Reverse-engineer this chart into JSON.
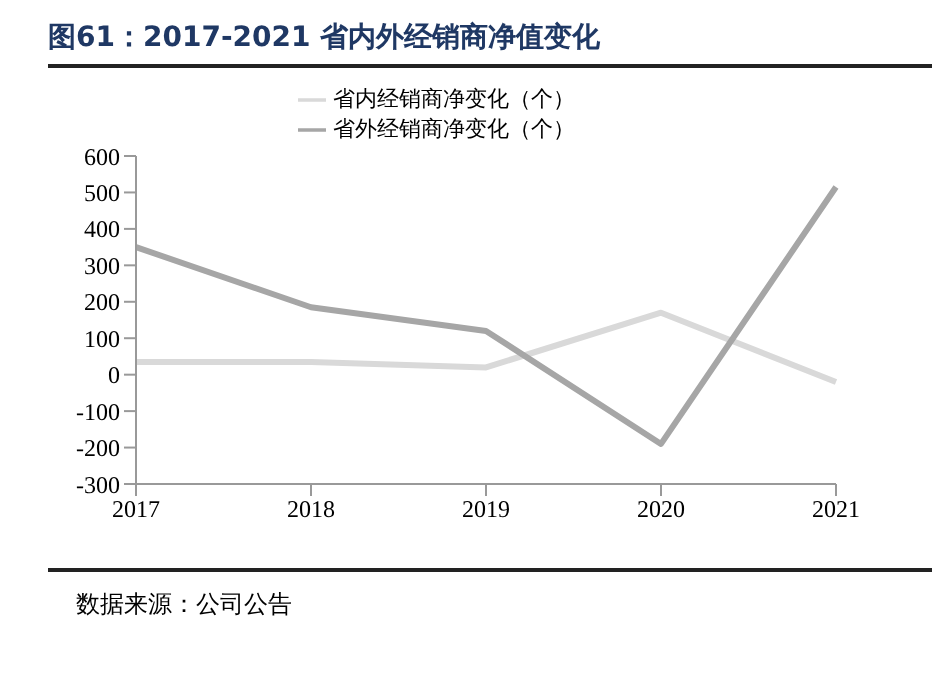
{
  "chart_data": {
    "type": "line",
    "title": "图61：2017-2021 省内外经销商净值变化",
    "categories": [
      "2017",
      "2018",
      "2019",
      "2020",
      "2021"
    ],
    "series": [
      {
        "name": "省内经销商净变化（个）",
        "color": "#d9d9d9",
        "values": [
          35,
          35,
          20,
          170,
          -20
        ]
      },
      {
        "name": "省外经销商净变化（个）",
        "color": "#a6a6a6",
        "values": [
          350,
          185,
          120,
          -190,
          515
        ]
      }
    ],
    "ylim": [
      -300,
      600
    ],
    "yticks": [
      -300,
      -200,
      -100,
      0,
      100,
      200,
      300,
      400,
      500,
      600
    ],
    "grid": false,
    "legend": "top",
    "marker": "none",
    "line_style": "solid",
    "annotations": [
      "数据来源：公司公告"
    ]
  }
}
